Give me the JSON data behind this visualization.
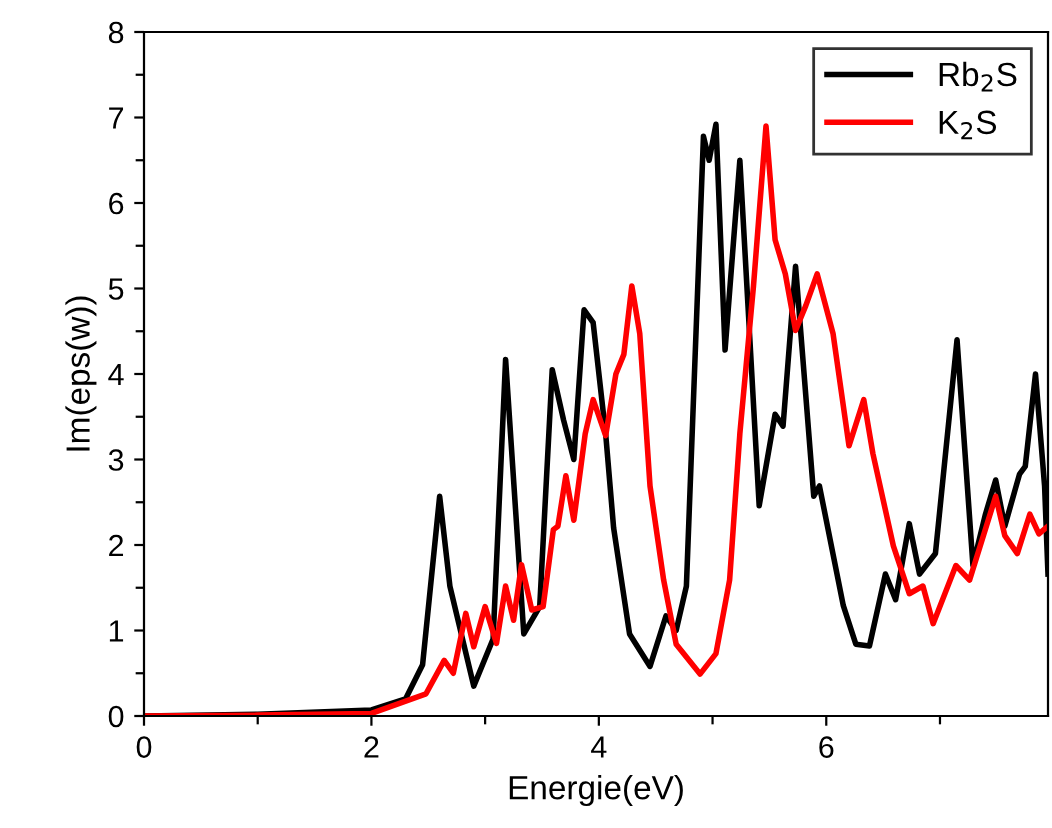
{
  "chart_data": {
    "type": "line",
    "xlabel": "Energie(eV)",
    "ylabel": "Im(eps(w))",
    "legend": "top right",
    "grid": false,
    "marker": "none",
    "line_style": "solid",
    "xlim": [
      0,
      7.95
    ],
    "ylim": [
      0,
      8
    ],
    "xticks": [
      0,
      {
        "value": 1,
        "label": null
      },
      2,
      {
        "value": 3,
        "label": null
      },
      4,
      {
        "value": 5,
        "label": null
      },
      6,
      {
        "value": 7,
        "label": null
      }
    ],
    "yticks": [
      0,
      {
        "value": 0.5,
        "label": null
      },
      1,
      {
        "value": 1.5,
        "label": null
      },
      2,
      {
        "value": 2.5,
        "label": null
      },
      3,
      {
        "value": 3.5,
        "label": null
      },
      4,
      {
        "value": 4.5,
        "label": null
      },
      5,
      {
        "value": 5.5,
        "label": null
      },
      6,
      {
        "value": 6.5,
        "label": null
      },
      7,
      {
        "value": 7.5,
        "label": null
      },
      8
    ],
    "series": [
      {
        "name": "Rb$_{2}$S",
        "color": "#000000",
        "x": [
          0,
          1,
          2.0,
          2.3,
          2.45,
          2.6,
          2.69,
          2.9,
          3.07,
          3.18,
          3.34,
          3.48,
          3.59,
          3.69,
          3.78,
          3.87,
          3.95,
          4.06,
          4.13,
          4.27,
          4.45,
          4.59,
          4.68,
          4.77,
          4.92,
          4.97,
          5.03,
          5.11,
          5.24,
          5.41,
          5.55,
          5.62,
          5.73,
          5.89,
          5.94,
          6.15,
          6.26,
          6.38,
          6.52,
          6.61,
          6.73,
          6.82,
          6.96,
          7.15,
          7.29,
          7.4,
          7.49,
          7.57,
          7.7,
          7.75,
          7.84,
          7.92,
          7.95
        ],
        "values": [
          0,
          0.02,
          0.07,
          0.2,
          0.6,
          2.57,
          1.52,
          0.35,
          0.9,
          4.17,
          0.96,
          1.28,
          4.05,
          3.46,
          3.0,
          4.75,
          4.6,
          3.3,
          2.2,
          0.96,
          0.58,
          1.17,
          1.0,
          1.52,
          6.78,
          6.5,
          6.92,
          4.28,
          6.5,
          2.46,
          3.53,
          3.39,
          5.26,
          2.57,
          2.69,
          1.29,
          0.84,
          0.82,
          1.66,
          1.36,
          2.25,
          1.66,
          1.9,
          4.4,
          1.76,
          2.36,
          2.76,
          2.22,
          2.83,
          2.92,
          4.0,
          2.69,
          1.66
        ]
      },
      {
        "name": "K$_{2}$S",
        "color": "#ff0000",
        "x": [
          0,
          1,
          2.0,
          2.48,
          2.64,
          2.72,
          2.83,
          2.9,
          3.0,
          3.1,
          3.18,
          3.25,
          3.32,
          3.41,
          3.51,
          3.6,
          3.64,
          3.71,
          3.78,
          3.88,
          3.95,
          4.06,
          4.15,
          4.22,
          4.29,
          4.36,
          4.45,
          4.57,
          4.68,
          4.89,
          5.03,
          5.15,
          5.24,
          5.36,
          5.47,
          5.55,
          5.64,
          5.73,
          5.82,
          5.92,
          6.06,
          6.2,
          6.33,
          6.41,
          6.59,
          6.73,
          6.85,
          6.94,
          7.14,
          7.26,
          7.49,
          7.57,
          7.68,
          7.79,
          7.87,
          7.95
        ],
        "values": [
          0,
          0.01,
          0.03,
          0.26,
          0.65,
          0.5,
          1.2,
          0.81,
          1.28,
          0.85,
          1.52,
          1.12,
          1.77,
          1.24,
          1.28,
          2.18,
          2.22,
          2.81,
          2.29,
          3.3,
          3.7,
          3.28,
          4.0,
          4.23,
          5.03,
          4.47,
          2.69,
          1.59,
          0.84,
          0.49,
          0.73,
          1.59,
          3.3,
          5.03,
          6.9,
          5.57,
          5.17,
          4.51,
          4.8,
          5.17,
          4.47,
          3.16,
          3.7,
          3.07,
          1.99,
          1.43,
          1.52,
          1.08,
          1.76,
          1.59,
          2.57,
          2.11,
          1.9,
          2.36,
          2.13,
          2.22
        ]
      }
    ]
  }
}
